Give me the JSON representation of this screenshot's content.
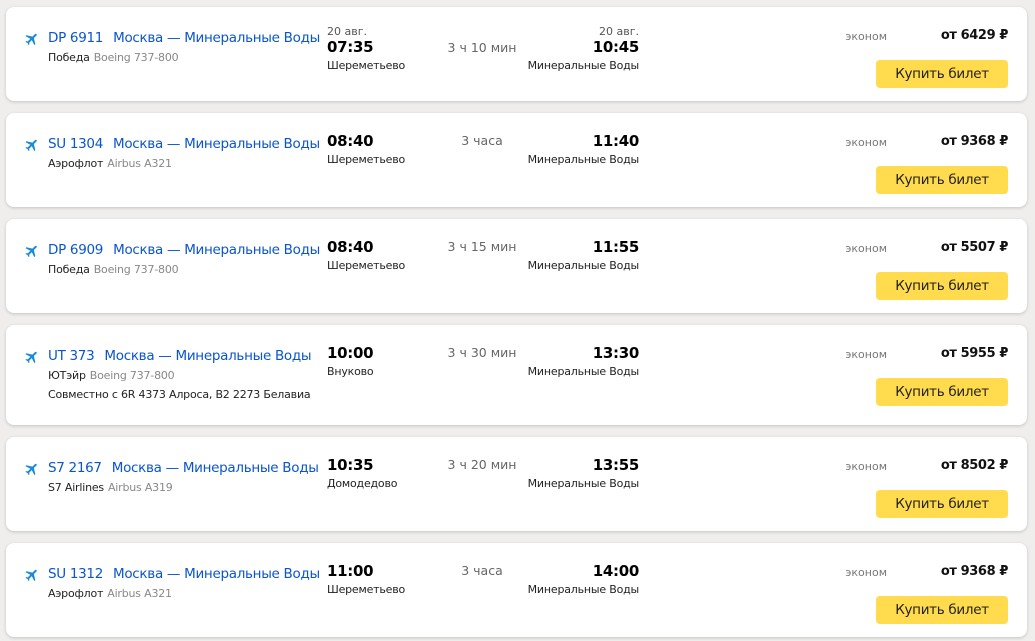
{
  "accent_color": "#ffdb4d",
  "link_color": "#0a55cf",
  "icon": "airplane-icon",
  "buy_label": "Купить билет",
  "flights": [
    {
      "number": "DP 6911",
      "route": "Москва — Минеральные Воды",
      "airline": "Победа",
      "aircraft": "Boeing 737-800",
      "dep_date": "20 авг.",
      "dep_time": "07:35",
      "dep_airport": "Шереметьево",
      "duration": "3 ч 10 мин",
      "arr_date": "20 авг.",
      "arr_time": "10:45",
      "arr_airport": "Минеральные Воды",
      "class": "эконом",
      "price": "от 6429 ₽"
    },
    {
      "number": "SU 1304",
      "route": "Москва — Минеральные Воды",
      "airline": "Аэрофлот",
      "aircraft": "Airbus A321",
      "dep_time": "08:40",
      "dep_airport": "Шереметьево",
      "duration": "3 часа",
      "arr_time": "11:40",
      "arr_airport": "Минеральные Воды",
      "class": "эконом",
      "price": "от 9368 ₽"
    },
    {
      "number": "DP 6909",
      "route": "Москва — Минеральные Воды",
      "airline": "Победа",
      "aircraft": "Boeing 737-800",
      "dep_time": "08:40",
      "dep_airport": "Шереметьево",
      "duration": "3 ч 15 мин",
      "arr_time": "11:55",
      "arr_airport": "Минеральные Воды",
      "class": "эконом",
      "price": "от 5507 ₽"
    },
    {
      "number": "UT 373",
      "route": "Москва — Минеральные Воды",
      "airline": "ЮТэйр",
      "aircraft": "Boeing 737-800",
      "joint": "Совместно с 6R 4373 Алроса, B2 2273 Белавиа",
      "dep_time": "10:00",
      "dep_airport": "Внуково",
      "duration": "3 ч 30 мин",
      "arr_time": "13:30",
      "arr_airport": "Минеральные Воды",
      "class": "эконом",
      "price": "от 5955 ₽"
    },
    {
      "number": "S7 2167",
      "route": "Москва — Минеральные Воды",
      "airline": "S7 Airlines",
      "aircraft": "Airbus A319",
      "dep_time": "10:35",
      "dep_airport": "Домодедово",
      "duration": "3 ч 20 мин",
      "arr_time": "13:55",
      "arr_airport": "Минеральные Воды",
      "class": "эконом",
      "price": "от 8502 ₽"
    },
    {
      "number": "SU 1312",
      "route": "Москва — Минеральные Воды",
      "airline": "Аэрофлот",
      "aircraft": "Airbus A321",
      "dep_time": "11:00",
      "dep_airport": "Шереметьево",
      "duration": "3 часа",
      "arr_time": "14:00",
      "arr_airport": "Минеральные Воды",
      "class": "эконом",
      "price": "от 9368 ₽"
    }
  ]
}
